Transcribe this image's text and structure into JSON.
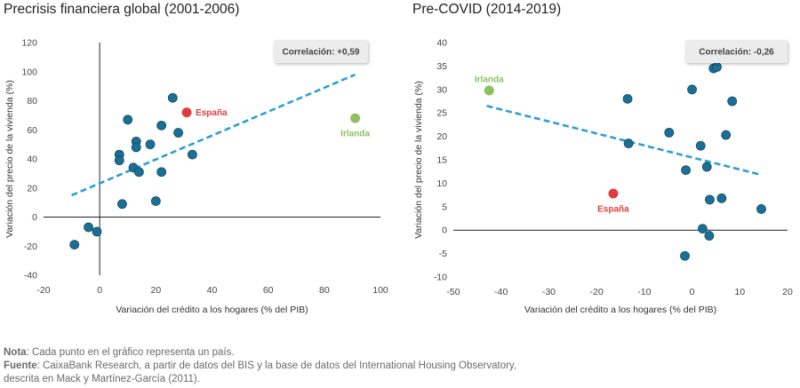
{
  "chart_data": [
    {
      "type": "scatter",
      "title": "Precrisis financiera global (2001-2006)",
      "xlabel": "Variación del crédito a los hogares (% del PIB)",
      "ylabel": "Variación del precio de la vivienda (%)",
      "xlim": [
        -20,
        100
      ],
      "ylim": [
        -40,
        120
      ],
      "xticks": [
        -20,
        0,
        20,
        40,
        60,
        80,
        100
      ],
      "yticks": [
        -40,
        -20,
        0,
        20,
        40,
        60,
        80,
        100,
        120
      ],
      "xtick_labels": [
        "-20",
        "0",
        "20",
        "40",
        "60",
        "80",
        "100"
      ],
      "ytick_labels": [
        "-40",
        "-20",
        "0",
        "20",
        "40",
        "60",
        "80",
        "100",
        "120"
      ],
      "correlation_label": "Correlación: +0,59",
      "trendline": {
        "x": [
          -10,
          91
        ],
        "y": [
          15,
          98
        ]
      },
      "points": [
        {
          "x": -9,
          "y": -19
        },
        {
          "x": -4,
          "y": -7
        },
        {
          "x": -1,
          "y": -10
        },
        {
          "x": 7,
          "y": 43
        },
        {
          "x": 7,
          "y": 39
        },
        {
          "x": 8,
          "y": 9
        },
        {
          "x": 10,
          "y": 67
        },
        {
          "x": 12,
          "y": 34
        },
        {
          "x": 13,
          "y": 52
        },
        {
          "x": 13,
          "y": 48
        },
        {
          "x": 14,
          "y": 31
        },
        {
          "x": 18,
          "y": 50
        },
        {
          "x": 20,
          "y": 11
        },
        {
          "x": 22,
          "y": 31
        },
        {
          "x": 22,
          "y": 63
        },
        {
          "x": 26,
          "y": 82
        },
        {
          "x": 28,
          "y": 58
        },
        {
          "x": 33,
          "y": 43
        }
      ],
      "highlights": [
        {
          "label": "España",
          "x": 31,
          "y": 72,
          "color": "#e03c3c"
        },
        {
          "label": "Irlanda",
          "x": 91,
          "y": 68,
          "color": "#8cc060"
        }
      ]
    },
    {
      "type": "scatter",
      "title": "Pre-COVID (2014-2019)",
      "xlabel": "Variación del crédito a los hogares (% del PIB)",
      "ylabel": "Variación del precio de la vivienda (%)",
      "xlim": [
        -50,
        20
      ],
      "ylim": [
        -10,
        40
      ],
      "xticks": [
        -50,
        -40,
        -30,
        -20,
        -10,
        0,
        10,
        20
      ],
      "yticks": [
        -10,
        -5,
        0,
        5,
        10,
        15,
        20,
        25,
        30,
        35,
        40
      ],
      "xtick_labels": [
        "-50",
        "-40",
        "-30",
        "-20",
        "-10",
        "0",
        "10",
        "20"
      ],
      "ytick_labels": [
        "-10",
        "-5",
        "0",
        "5",
        "10",
        "15",
        "20",
        "25",
        "30",
        "35",
        "40"
      ],
      "correlation_label": "Correlación: -0,26",
      "trendline": {
        "x": [
          -43,
          14.5
        ],
        "y": [
          26.5,
          11.8
        ]
      },
      "points": [
        {
          "x": -13.5,
          "y": 28
        },
        {
          "x": -13.3,
          "y": 18.5
        },
        {
          "x": -4.8,
          "y": 20.8
        },
        {
          "x": -1.5,
          "y": -5.5
        },
        {
          "x": -1.3,
          "y": 12.8
        },
        {
          "x": 0,
          "y": 30
        },
        {
          "x": 1.8,
          "y": 18
        },
        {
          "x": 2.2,
          "y": 0.3
        },
        {
          "x": 3.1,
          "y": 13.5
        },
        {
          "x": 3.6,
          "y": -1.2
        },
        {
          "x": 3.7,
          "y": 6.5
        },
        {
          "x": 4.5,
          "y": 34.5
        },
        {
          "x": 5.2,
          "y": 34.8
        },
        {
          "x": 6.2,
          "y": 6.8
        },
        {
          "x": 7.1,
          "y": 20.3
        },
        {
          "x": 8.4,
          "y": 27.5
        },
        {
          "x": 14.5,
          "y": 4.5
        }
      ],
      "highlights": [
        {
          "label": "Irlanda",
          "x": -42.5,
          "y": 29.8,
          "color": "#8cc060"
        },
        {
          "label": "España",
          "x": -16.5,
          "y": 7.8,
          "color": "#e03c3c"
        }
      ]
    }
  ],
  "notes": {
    "nota_label": "Nota",
    "nota_text": ": Cada punto en el gráfico representa un país.",
    "fuente_label": "Fuente",
    "fuente_text": ": CaixaBank Research, a partir de datos del BIS y la base de datos del International Housing Observatory, descrita en Mack y Martínez-García (2011)."
  },
  "colors": {
    "point": "#1c6e93",
    "trendline": "#2b9fd4",
    "espana": "#e03c3c",
    "irlanda": "#8cc060"
  }
}
